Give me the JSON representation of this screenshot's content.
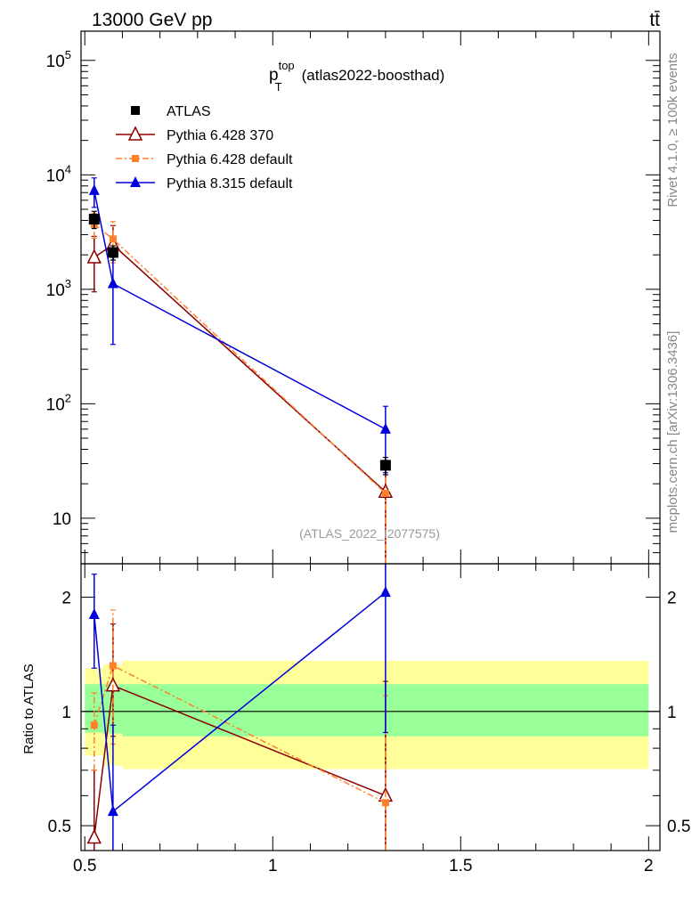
{
  "header": {
    "energy_label": "13000 GeV pp",
    "process_label": "tt̄"
  },
  "side_labels": {
    "rivet": "Rivet 4.1.0, ≥ 100k events",
    "mcplots": "mcplots.cern.ch [arXiv:1306.3436]"
  },
  "chart_data": [
    {
      "type": "scatter",
      "panel": "main",
      "title_main": "p",
      "title_sup": "top",
      "title_sub": "T",
      "title_suffix": "(atlas2022-boosthad)",
      "watermark": "(ATLAS_2022_I2077575)",
      "xlabel": "",
      "ylabel": "",
      "yscale": "log",
      "xlim": [
        0.49,
        2.03
      ],
      "ylim": [
        4,
        180000
      ],
      "y_ticks": [
        {
          "value": 10,
          "label": "10"
        },
        {
          "value": 100,
          "label": "10",
          "exp": "2"
        },
        {
          "value": 1000,
          "label": "10",
          "exp": "3"
        },
        {
          "value": 10000,
          "label": "10",
          "exp": "4"
        },
        {
          "value": 100000,
          "label": "10",
          "exp": "5"
        }
      ],
      "legend_position": "top-left",
      "series": [
        {
          "name": "ATLAS",
          "color": "#000000",
          "marker": "square",
          "line": "none",
          "points": [
            {
              "x": 0.525,
              "y": 4100,
              "lo": 3400,
              "hi": 4800
            },
            {
              "x": 0.575,
              "y": 2100,
              "lo": 1800,
              "hi": 2400
            },
            {
              "x": 1.3,
              "y": 29,
              "lo": 24,
              "hi": 34
            }
          ]
        },
        {
          "name": "Pythia 6.428 370",
          "color": "#8b0000",
          "marker": "open-triangle",
          "line": "solid",
          "points": [
            {
              "x": 0.525,
              "y": 1900,
              "lo": 950,
              "hi": 2900
            },
            {
              "x": 0.575,
              "y": 2450,
              "lo": 1800,
              "hi": 3600
            },
            {
              "x": 1.3,
              "y": 17,
              "lo": 1,
              "hi": 32
            }
          ]
        },
        {
          "name": "Pythia 6.428 default",
          "color": "#ff7f2a",
          "marker": "square-small",
          "line": "dashdot",
          "points": [
            {
              "x": 0.525,
              "y": 3700,
              "lo": 2800,
              "hi": 4600
            },
            {
              "x": 0.575,
              "y": 2750,
              "lo": 1700,
              "hi": 3900
            },
            {
              "x": 1.3,
              "y": 16.5,
              "lo": 1,
              "hi": 30
            }
          ]
        },
        {
          "name": "Pythia 8.315 default",
          "color": "#0000dd",
          "marker": "triangle",
          "line": "solid",
          "points": [
            {
              "x": 0.525,
              "y": 7300,
              "lo": 5200,
              "hi": 9400
            },
            {
              "x": 0.575,
              "y": 1120,
              "lo": 330,
              "hi": 1900
            },
            {
              "x": 1.3,
              "y": 60,
              "lo": 25,
              "hi": 95
            }
          ]
        }
      ]
    },
    {
      "type": "scatter",
      "panel": "ratio",
      "ylabel": "Ratio to ATLAS",
      "yscale": "log",
      "xlim": [
        0.49,
        2.03
      ],
      "ylim": [
        0.43,
        2.45
      ],
      "x_ticks": [
        {
          "value": 0.5,
          "label": "0.5"
        },
        {
          "value": 1,
          "label": "1"
        },
        {
          "value": 1.5,
          "label": "1.5"
        },
        {
          "value": 2,
          "label": "2"
        }
      ],
      "y_ticks": [
        {
          "value": 0.5,
          "label": "0.5"
        },
        {
          "value": 1,
          "label": "1"
        },
        {
          "value": 2,
          "label": "2"
        }
      ],
      "bands": {
        "outer_color": "#ffff99",
        "inner_color": "#99ff99",
        "segments": [
          {
            "x0": 0.5,
            "x1": 0.55,
            "outer_lo": 0.765,
            "outer_hi": 1.3,
            "inner_lo": 0.88,
            "inner_hi": 1.18
          },
          {
            "x0": 0.55,
            "x1": 0.6,
            "outer_lo": 0.72,
            "outer_hi": 1.33,
            "inner_lo": 0.875,
            "inner_hi": 1.18
          },
          {
            "x0": 0.6,
            "x1": 2.0,
            "outer_lo": 0.705,
            "outer_hi": 1.36,
            "inner_lo": 0.86,
            "inner_hi": 1.18
          }
        ]
      },
      "series": [
        {
          "name": "Pythia 6.428 370",
          "color": "#8b0000",
          "marker": "open-triangle",
          "line": "solid",
          "points": [
            {
              "x": 0.525,
              "y": 0.465,
              "lo": 0.38,
              "hi": 0.7
            },
            {
              "x": 0.575,
              "y": 1.17,
              "lo": 0.86,
              "hi": 1.7
            },
            {
              "x": 1.3,
              "y": 0.6,
              "lo": 0.3,
              "hi": 1.2
            }
          ]
        },
        {
          "name": "Pythia 6.428 default",
          "color": "#ff7f2a",
          "marker": "square-small",
          "line": "dashdot",
          "points": [
            {
              "x": 0.525,
              "y": 0.92,
              "lo": 0.7,
              "hi": 1.12
            },
            {
              "x": 0.575,
              "y": 1.32,
              "lo": 0.82,
              "hi": 1.85
            },
            {
              "x": 1.3,
              "y": 0.575,
              "lo": 0.3,
              "hi": 1.1
            }
          ]
        },
        {
          "name": "Pythia 8.315 default",
          "color": "#0000dd",
          "marker": "triangle",
          "line": "solid",
          "points": [
            {
              "x": 0.525,
              "y": 1.8,
              "lo": 1.3,
              "hi": 2.3
            },
            {
              "x": 0.575,
              "y": 0.545,
              "lo": 0.3,
              "hi": 0.92
            },
            {
              "x": 1.3,
              "y": 2.06,
              "lo": 0.88,
              "hi": 3.3
            }
          ]
        }
      ]
    }
  ]
}
